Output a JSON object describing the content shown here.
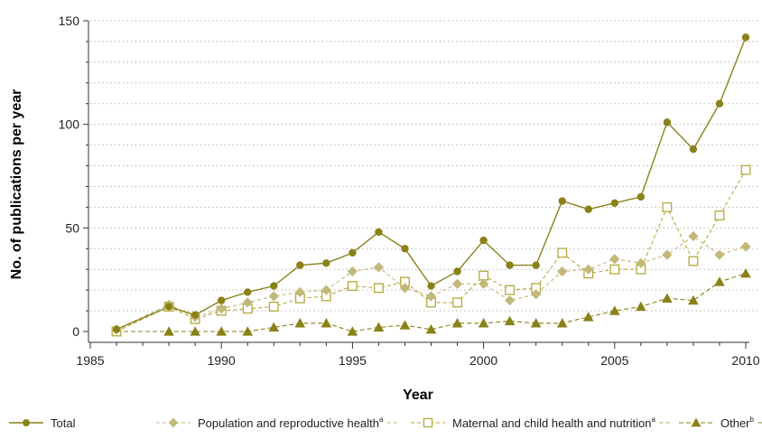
{
  "colors": {
    "total": "#8a8218",
    "population": "#c2b87a",
    "maternal": "#b3a93a",
    "other": "#8a8218",
    "grid": "#b9b9b9",
    "axis": "#333333"
  },
  "chart_data": {
    "type": "line",
    "xlabel": "Year",
    "ylabel": "No. of publications per year",
    "xlim": [
      1985,
      2010
    ],
    "ylim": [
      0,
      150
    ],
    "x_ticks": [
      1985,
      1990,
      1995,
      2000,
      2005,
      2010
    ],
    "y_ticks": [
      0,
      50,
      100,
      150
    ],
    "grid": "horizontal dotted",
    "legend_position": "bottom",
    "series": [
      {
        "name": "Total",
        "marker": "filled-circle",
        "line": "solid",
        "x": [
          1986,
          1988,
          1989,
          1990,
          1991,
          1992,
          1993,
          1994,
          1995,
          1996,
          1997,
          1998,
          1999,
          2000,
          2001,
          2002,
          2003,
          2004,
          2005,
          2006,
          2007,
          2008,
          2009,
          2010
        ],
        "values": [
          1,
          12,
          8,
          15,
          19,
          22,
          32,
          33,
          38,
          48,
          40,
          22,
          29,
          44,
          32,
          32,
          63,
          59,
          62,
          65,
          101,
          88,
          110,
          142
        ]
      },
      {
        "name": "Population and reproductive health",
        "name_sup": "a",
        "marker": "filled-diamond",
        "line": "dashed",
        "x": [
          1986,
          1988,
          1989,
          1990,
          1991,
          1992,
          1993,
          1994,
          1995,
          1996,
          1997,
          1998,
          1999,
          2000,
          2001,
          2002,
          2003,
          2004,
          2005,
          2006,
          2007,
          2008,
          2009,
          2010
        ],
        "values": [
          1,
          13,
          7,
          11,
          14,
          17,
          19,
          20,
          29,
          31,
          21,
          17,
          23,
          23,
          15,
          18,
          29,
          30,
          35,
          33,
          37,
          46,
          37,
          41
        ]
      },
      {
        "name": "Maternal and child health and nutrition",
        "name_sup": "a",
        "marker": "open-square",
        "line": "dashed",
        "x": [
          1986,
          1988,
          1989,
          1990,
          1991,
          1992,
          1993,
          1994,
          1995,
          1996,
          1997,
          1998,
          1999,
          2000,
          2001,
          2002,
          2003,
          2004,
          2005,
          2006,
          2007,
          2008,
          2009,
          2010
        ],
        "values": [
          0,
          12,
          6,
          10,
          11,
          12,
          16,
          17,
          22,
          21,
          24,
          14,
          14,
          27,
          20,
          21,
          38,
          28,
          30,
          30,
          60,
          34,
          56,
          78
        ]
      },
      {
        "name": "Other",
        "name_sup": "b",
        "marker": "filled-triangle",
        "line": "dashed",
        "x": [
          1986,
          1988,
          1989,
          1990,
          1991,
          1992,
          1993,
          1994,
          1995,
          1996,
          1997,
          1998,
          1999,
          2000,
          2001,
          2002,
          2003,
          2004,
          2005,
          2006,
          2007,
          2008,
          2009,
          2010
        ],
        "values": [
          0,
          0,
          0,
          0,
          0,
          2,
          4,
          4,
          0,
          2,
          3,
          1,
          4,
          4,
          5,
          4,
          4,
          7,
          10,
          12,
          16,
          15,
          24,
          28
        ]
      }
    ]
  }
}
